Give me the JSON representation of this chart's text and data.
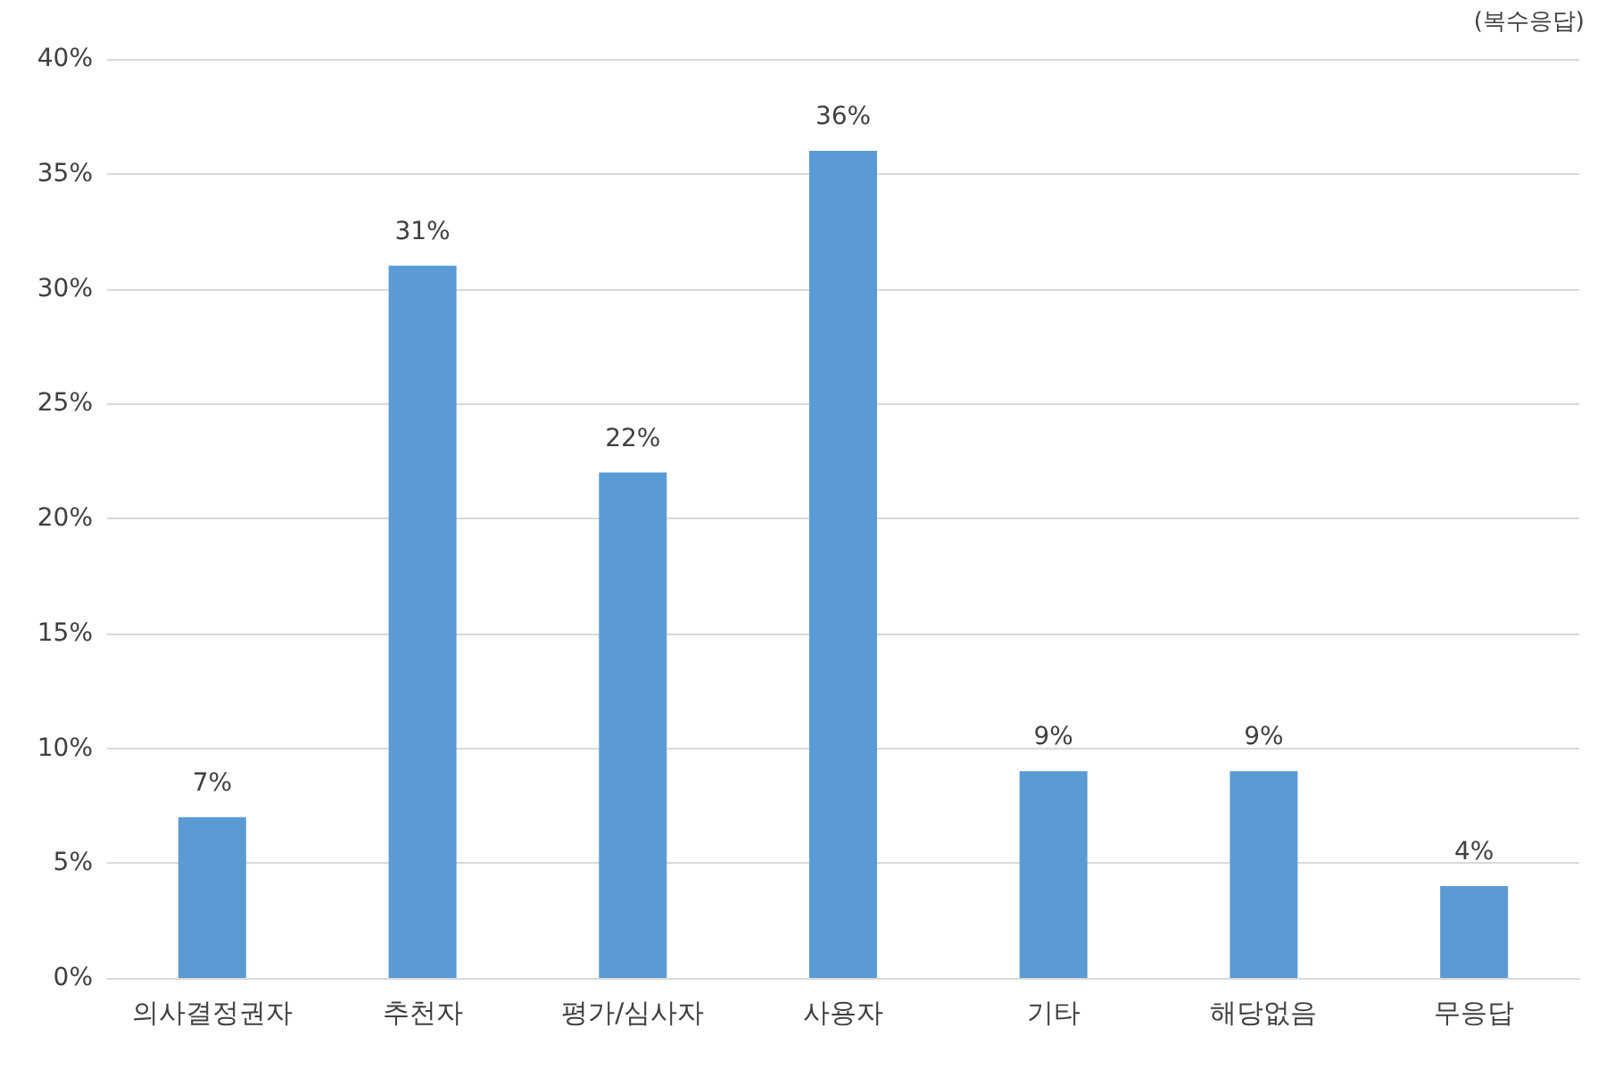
{
  "chart_data": {
    "type": "bar",
    "categories": [
      "의사결정권자",
      "추천자",
      "평가/심사자",
      "사용자",
      "기타",
      "해당없음",
      "무응답"
    ],
    "values": [
      7,
      31,
      22,
      36,
      9,
      9,
      4
    ],
    "color": "#5b9bd5",
    "value_labels": [
      "7%",
      "31%",
      "22%",
      "36%",
      "9%",
      "9%",
      "4%"
    ],
    "ylim": [
      0,
      40
    ],
    "yticks": [
      {
        "value": 0,
        "label": "0%"
      },
      {
        "value": 5,
        "label": "5%"
      },
      {
        "value": 10,
        "label": "10%"
      },
      {
        "value": 15,
        "label": "15%"
      },
      {
        "value": 20,
        "label": "20%"
      },
      {
        "value": 25,
        "label": "25%"
      },
      {
        "value": 30,
        "label": "30%"
      },
      {
        "value": 35,
        "label": "35%"
      },
      {
        "value": 40,
        "label": "40%"
      }
    ],
    "grid": "y",
    "annotations": [
      "(복수응답)"
    ]
  }
}
